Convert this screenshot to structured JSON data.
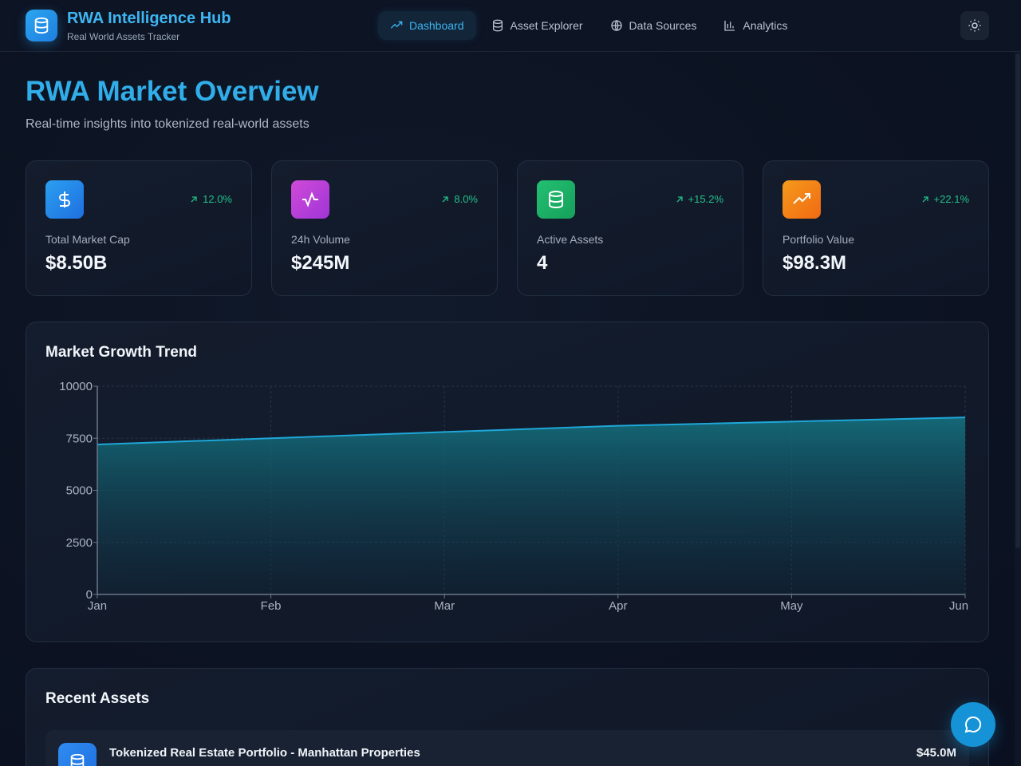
{
  "header": {
    "brand_title": "RWA Intelligence Hub",
    "brand_subtitle": "Real World Assets Tracker",
    "nav": [
      {
        "label": "Dashboard",
        "icon": "trending-up-icon",
        "active": true
      },
      {
        "label": "Asset Explorer",
        "icon": "database-icon",
        "active": false
      },
      {
        "label": "Data Sources",
        "icon": "globe-icon",
        "active": false
      },
      {
        "label": "Analytics",
        "icon": "bar-chart-icon",
        "active": false
      }
    ],
    "theme_toggle_icon": "sun-icon"
  },
  "page": {
    "title": "RWA Market Overview",
    "subtitle": "Real-time insights into tokenized real-world assets"
  },
  "stats": [
    {
      "label": "Total Market Cap",
      "value": "$8.50B",
      "change": "12.0%",
      "icon": "dollar-icon",
      "color": "#2b8ff0"
    },
    {
      "label": "24h Volume",
      "value": "$245M",
      "change": "8.0%",
      "icon": "activity-icon",
      "color": "#c03fd8"
    },
    {
      "label": "Active Assets",
      "value": "4",
      "change": "+15.2%",
      "icon": "database-icon",
      "color": "#1fb56a"
    },
    {
      "label": "Portfolio Value",
      "value": "$98.3M",
      "change": "+22.1%",
      "icon": "trending-up-icon",
      "color": "#f07a1a"
    }
  ],
  "chart_panel": {
    "title": "Market Growth Trend"
  },
  "chart_data": {
    "type": "area",
    "title": "Market Growth Trend",
    "categories": [
      "Jan",
      "Feb",
      "Mar",
      "Apr",
      "May",
      "Jun"
    ],
    "values": [
      7200,
      7500,
      7800,
      8100,
      8300,
      8500
    ],
    "ylim": [
      0,
      10000
    ],
    "yticks": [
      "0",
      "2500",
      "5000",
      "7500",
      "10000"
    ],
    "grid": true,
    "line_color": "#1ea7d8"
  },
  "recent_assets": {
    "title": "Recent Assets",
    "items": [
      {
        "name": "Tokenized Real Estate Portfolio - Manhattan Properties",
        "value": "$45.0M",
        "icon": "database-icon"
      }
    ]
  },
  "chat_button_icon": "chat-bubble-icon"
}
